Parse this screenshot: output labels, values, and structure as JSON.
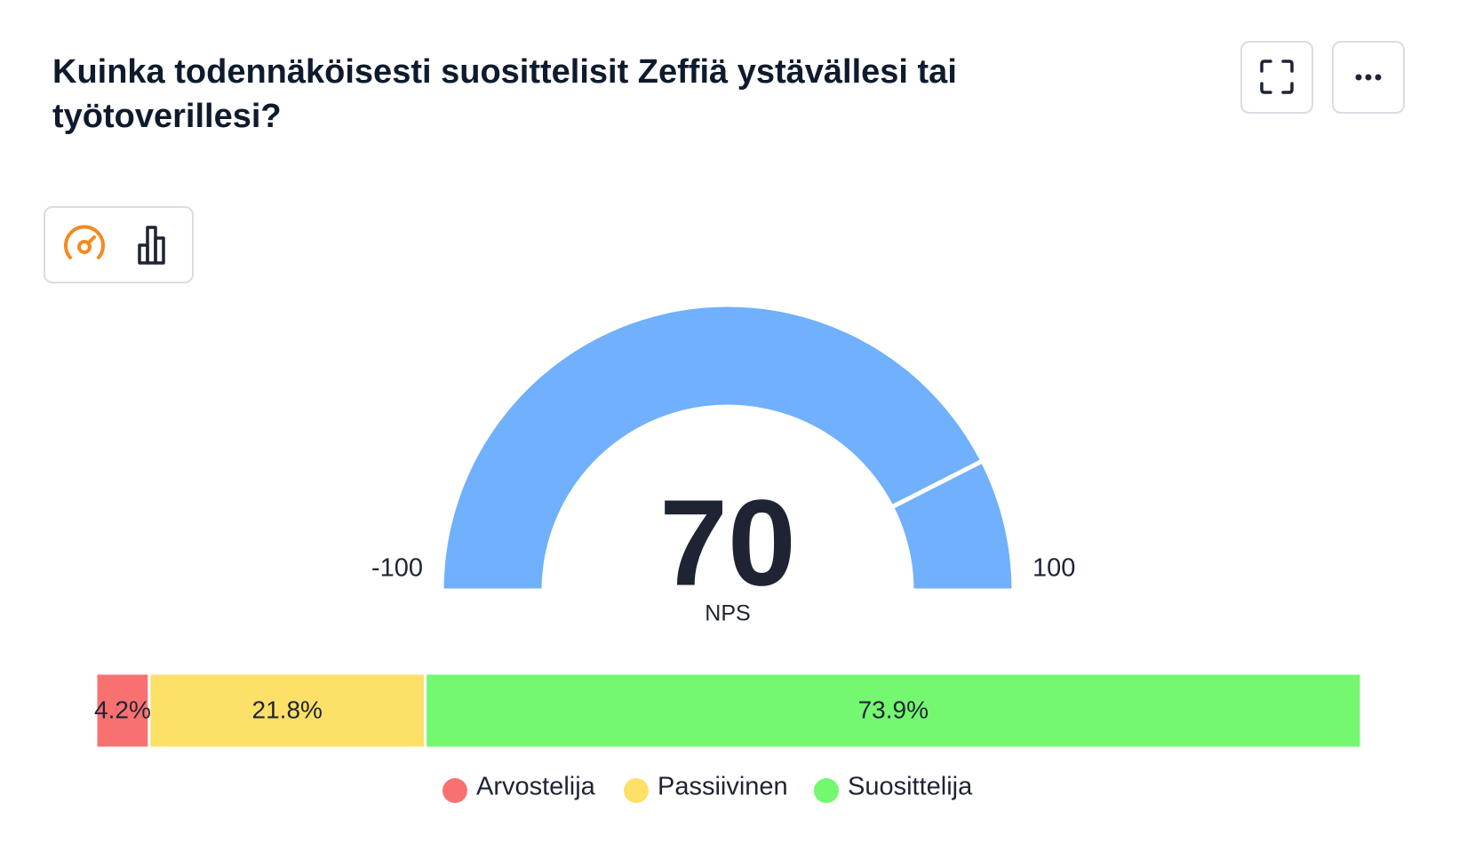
{
  "header": {
    "title": "Kuinka todennäköisesti suosittelisit Zeffiä ystävällesi tai työtoverillesi?"
  },
  "gauge": {
    "min": -100,
    "max": 100,
    "value": 70,
    "label": "NPS",
    "color": "#70b0fc"
  },
  "breakdown": {
    "segments": [
      {
        "name": "Arvostelija",
        "color": "#f87171",
        "value": 4.2,
        "value_label": "4.2%"
      },
      {
        "name": "Passiivinen",
        "color": "#fde068",
        "value": 21.8,
        "value_label": "21.8%"
      },
      {
        "name": "Suosittelija",
        "color": "#74f870",
        "value": 73.9,
        "value_label": "73.9%"
      }
    ]
  }
}
